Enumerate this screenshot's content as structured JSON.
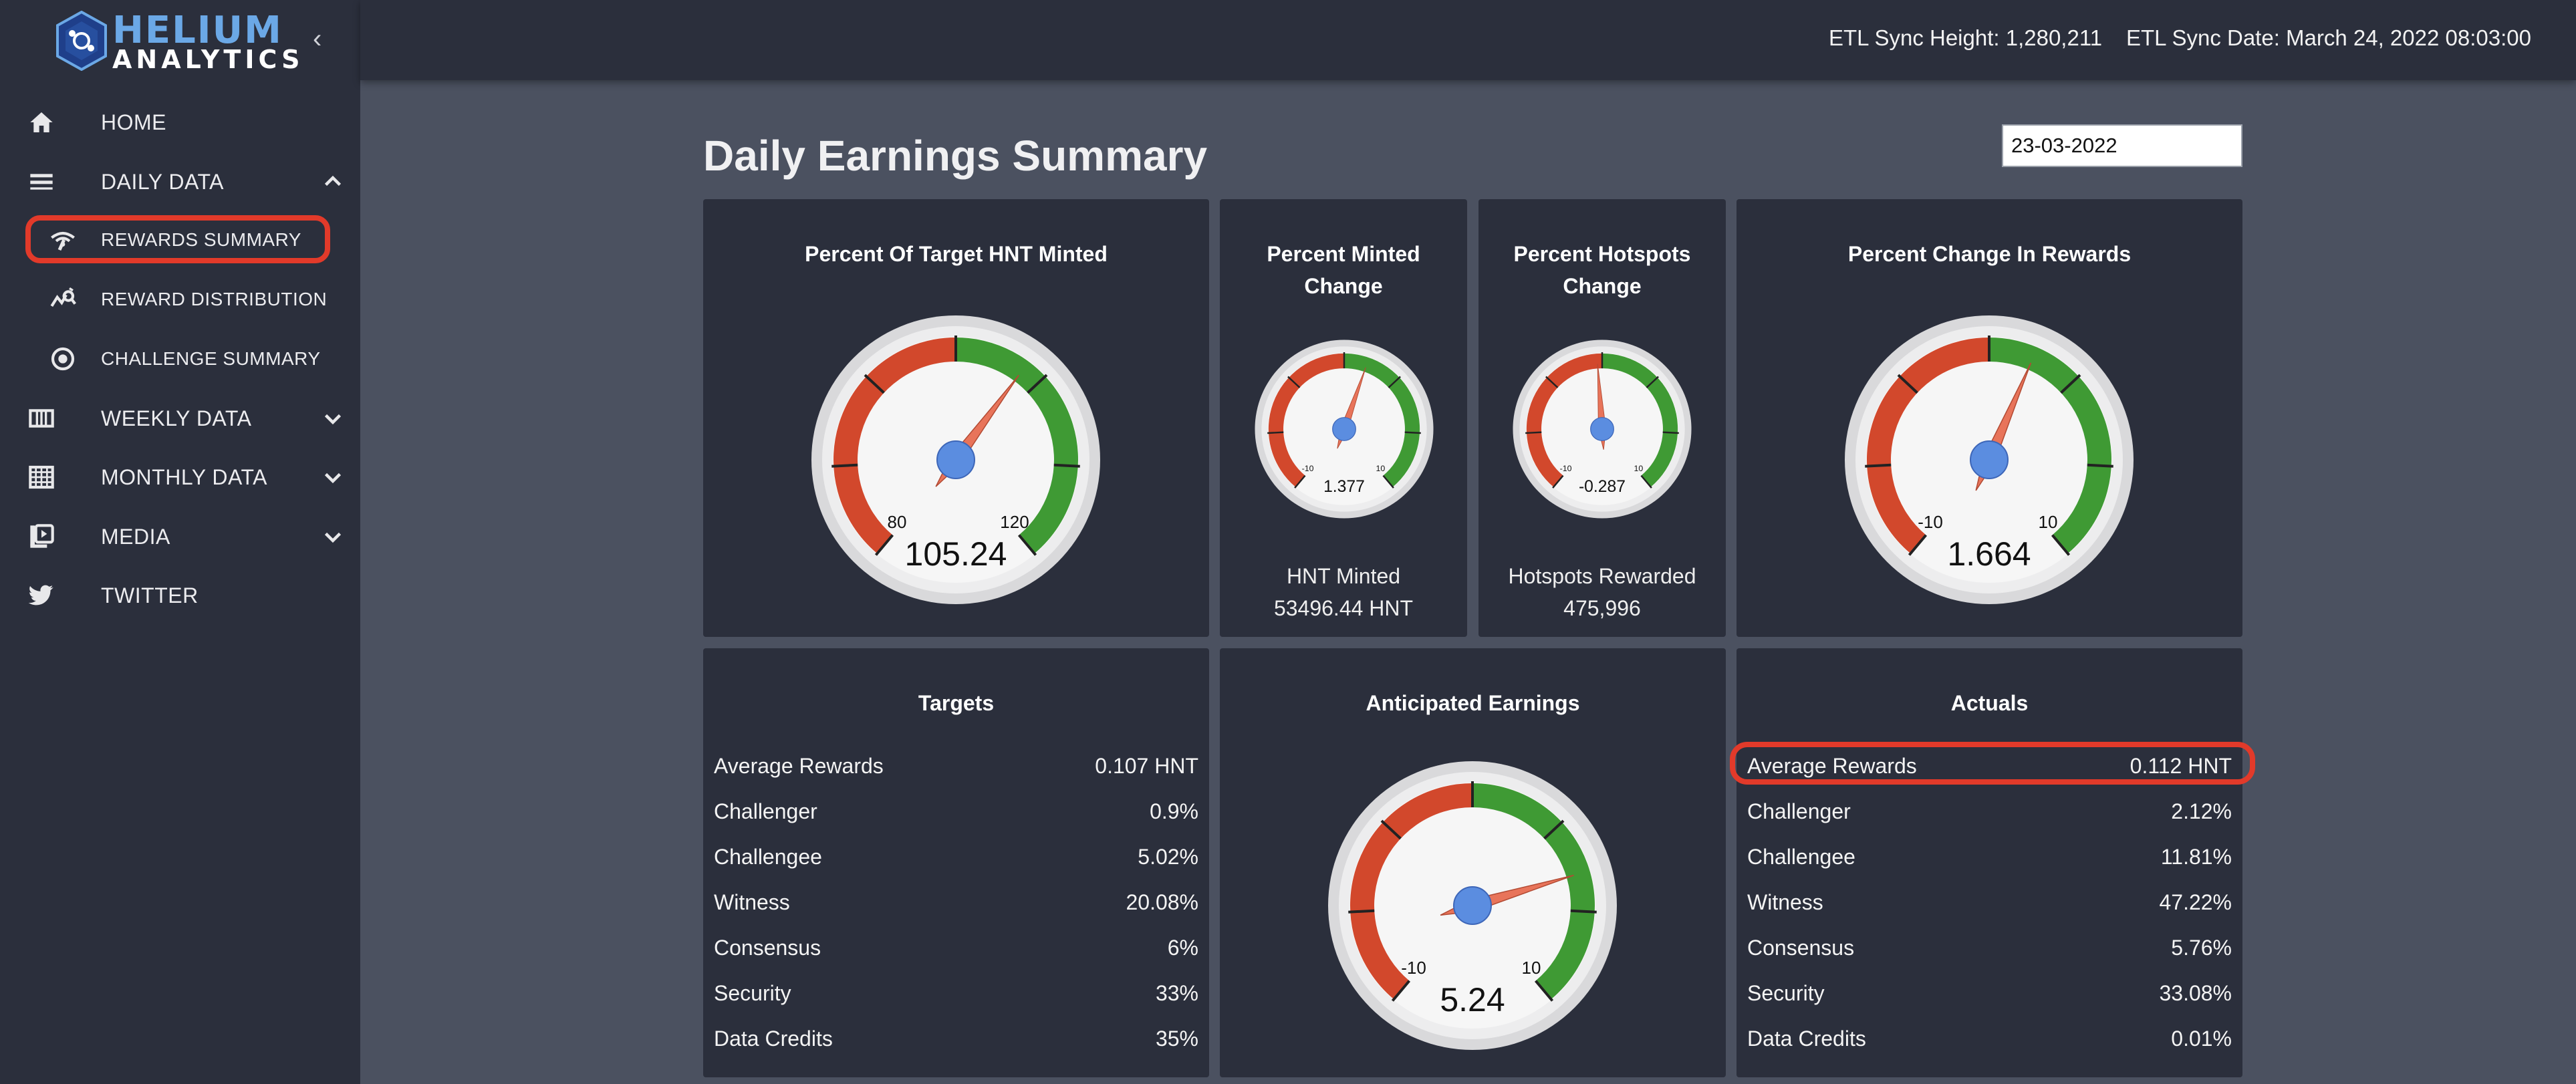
{
  "brand": {
    "line1": "HELIUM",
    "line2": "ANALYTICS",
    "logo_icon": "helium-hex-logo-icon"
  },
  "sidebar": {
    "collapse_icon": "chevron-left-icon",
    "items": [
      {
        "label": "HOME",
        "icon": "home-icon"
      },
      {
        "label": "DAILY DATA",
        "icon": "daily-data-icon",
        "expanded": true
      },
      {
        "label": "REWARDS SUMMARY",
        "icon": "rewards-icon",
        "active": true
      },
      {
        "label": "REWARD DISTRIBUTION",
        "icon": "distribution-icon"
      },
      {
        "label": "CHALLENGE SUMMARY",
        "icon": "challenge-icon"
      },
      {
        "label": "WEEKLY DATA",
        "icon": "weekly-icon"
      },
      {
        "label": "MONTHLY DATA",
        "icon": "monthly-icon"
      },
      {
        "label": "MEDIA",
        "icon": "media-icon"
      },
      {
        "label": "TWITTER",
        "icon": "twitter-icon"
      }
    ]
  },
  "header": {
    "sync_height": "ETL Sync Height: 1,280,211",
    "sync_date": "ETL Sync Date: March 24, 2022 08:03:00"
  },
  "main": {
    "title": "Daily Earnings Summary",
    "date_value": "23-03-2022"
  },
  "cards": {
    "target_minted": {
      "title": "Percent Of Target HNT Minted",
      "min_label": "80",
      "max_label": "120",
      "value": "105.24",
      "min": 80,
      "max": 120,
      "reading": 105.24
    },
    "minted_change": {
      "title_line1": "Percent Minted",
      "title_line2": "Change",
      "min_label": "-10",
      "max_label": "10",
      "value": "1.377",
      "min": -10,
      "max": 10,
      "reading": 1.377,
      "sub_label": "HNT Minted",
      "sub_value": "53496.44 HNT"
    },
    "hotspots_change": {
      "title_line1": "Percent Hotspots",
      "title_line2": "Change",
      "min_label": "-10",
      "max_label": "10",
      "value": "-0.287",
      "min": -10,
      "max": 10,
      "reading": -0.287,
      "sub_label": "Hotspots Rewarded",
      "sub_value": "475,996"
    },
    "rewards_change": {
      "title": "Percent Change In Rewards",
      "min_label": "-10",
      "max_label": "10",
      "value": "1.664",
      "min": -10,
      "max": 10,
      "reading": 1.664
    },
    "anticipated": {
      "title": "Anticipated Earnings",
      "min_label": "-10",
      "max_label": "10",
      "value": "5.24",
      "min": -10,
      "max": 10,
      "reading": 5.24
    },
    "targets": {
      "title": "Targets",
      "rows": [
        {
          "label": "Average Rewards",
          "value": "0.107 HNT"
        },
        {
          "label": "Challenger",
          "value": "0.9%"
        },
        {
          "label": "Challengee",
          "value": "5.02%"
        },
        {
          "label": "Witness",
          "value": "20.08%"
        },
        {
          "label": "Consensus",
          "value": "6%"
        },
        {
          "label": "Security",
          "value": "33%"
        },
        {
          "label": "Data Credits",
          "value": "35%"
        }
      ]
    },
    "actuals": {
      "title": "Actuals",
      "rows": [
        {
          "label": "Average Rewards",
          "value": "0.112 HNT"
        },
        {
          "label": "Challenger",
          "value": "2.12%"
        },
        {
          "label": "Challengee",
          "value": "11.81%"
        },
        {
          "label": "Witness",
          "value": "47.22%"
        },
        {
          "label": "Consensus",
          "value": "5.76%"
        },
        {
          "label": "Security",
          "value": "33.08%"
        },
        {
          "label": "Data Credits",
          "value": "0.01%"
        }
      ]
    }
  },
  "colors": {
    "gauge_red": "#d2482c",
    "gauge_green": "#3f9a34",
    "needle": "#e8745a",
    "hub": "#5b8de0",
    "highlight": "#e23a2a"
  }
}
